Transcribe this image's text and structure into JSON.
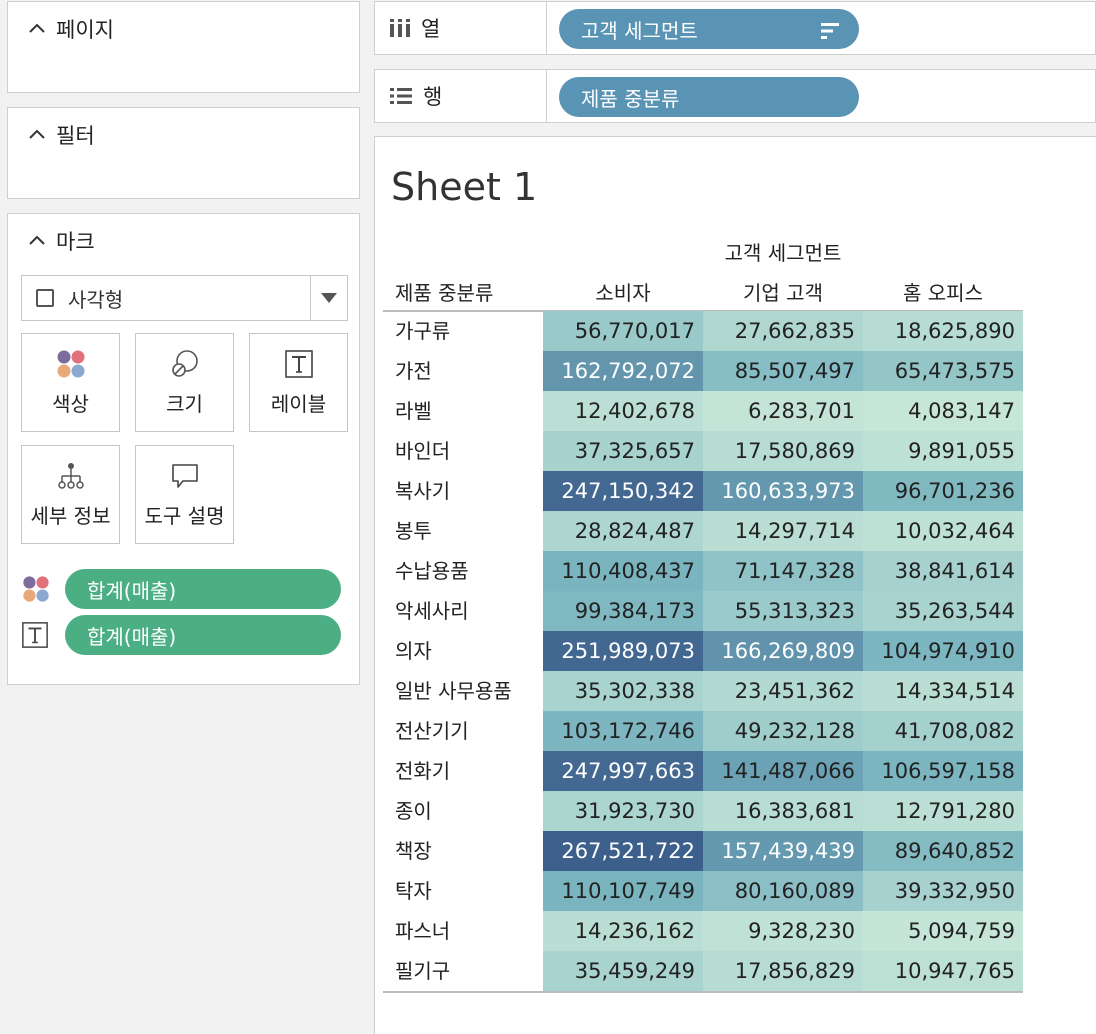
{
  "panels": {
    "pages_title": "페이지",
    "filters_title": "필터",
    "marks_title": "마크",
    "mark_type": "사각형",
    "mark_buttons": [
      "색상",
      "크기",
      "레이블",
      "세부 정보",
      "도구 설명"
    ],
    "mark_pills": [
      "합계(매출)",
      "합계(매출)"
    ]
  },
  "shelves": {
    "columns_label": "열",
    "columns_pill": "고객 세그먼트",
    "rows_label": "행",
    "rows_pill": "제품 중분류"
  },
  "view": {
    "sheet_title": "Sheet 1",
    "column_group": "고객 세그먼트",
    "row_header": "제품 중분류",
    "columns": [
      "소비자",
      "기업 고객",
      "홈 오피스"
    ],
    "rows": [
      {
        "label": "가구류",
        "values": [
          "56,770,017",
          "27,662,835",
          "18,625,890"
        ],
        "raw": [
          56770017,
          27662835,
          18625890
        ]
      },
      {
        "label": "가전",
        "values": [
          "162,792,072",
          "85,507,497",
          "65,473,575"
        ],
        "raw": [
          162792072,
          85507497,
          65473575
        ]
      },
      {
        "label": "라벨",
        "values": [
          "12,402,678",
          "6,283,701",
          "4,083,147"
        ],
        "raw": [
          12402678,
          6283701,
          4083147
        ]
      },
      {
        "label": "바인더",
        "values": [
          "37,325,657",
          "17,580,869",
          "9,891,055"
        ],
        "raw": [
          37325657,
          17580869,
          9891055
        ]
      },
      {
        "label": "복사기",
        "values": [
          "247,150,342",
          "160,633,973",
          "96,701,236"
        ],
        "raw": [
          247150342,
          160633973,
          96701236
        ]
      },
      {
        "label": "봉투",
        "values": [
          "28,824,487",
          "14,297,714",
          "10,032,464"
        ],
        "raw": [
          28824487,
          14297714,
          10032464
        ]
      },
      {
        "label": "수납용품",
        "values": [
          "110,408,437",
          "71,147,328",
          "38,841,614"
        ],
        "raw": [
          110408437,
          71147328,
          38841614
        ]
      },
      {
        "label": "악세사리",
        "values": [
          "99,384,173",
          "55,313,323",
          "35,263,544"
        ],
        "raw": [
          99384173,
          55313323,
          35263544
        ]
      },
      {
        "label": "의자",
        "values": [
          "251,989,073",
          "166,269,809",
          "104,974,910"
        ],
        "raw": [
          251989073,
          166269809,
          104974910
        ]
      },
      {
        "label": "일반 사무용품",
        "values": [
          "35,302,338",
          "23,451,362",
          "14,334,514"
        ],
        "raw": [
          35302338,
          23451362,
          14334514
        ]
      },
      {
        "label": "전산기기",
        "values": [
          "103,172,746",
          "49,232,128",
          "41,708,082"
        ],
        "raw": [
          103172746,
          49232128,
          41708082
        ]
      },
      {
        "label": "전화기",
        "values": [
          "247,997,663",
          "141,487,066",
          "106,597,158"
        ],
        "raw": [
          247997663,
          141487066,
          106597158
        ]
      },
      {
        "label": "종이",
        "values": [
          "31,923,730",
          "16,383,681",
          "12,791,280"
        ],
        "raw": [
          31923730,
          16383681,
          12791280
        ]
      },
      {
        "label": "책장",
        "values": [
          "267,521,722",
          "157,439,439",
          "89,640,852"
        ],
        "raw": [
          267521722,
          157439439,
          89640852
        ]
      },
      {
        "label": "탁자",
        "values": [
          "110,107,749",
          "80,160,089",
          "39,332,950"
        ],
        "raw": [
          110107749,
          80160089,
          39332950
        ]
      },
      {
        "label": "파스너",
        "values": [
          "14,236,162",
          "9,328,230",
          "5,094,759"
        ],
        "raw": [
          14236162,
          9328230,
          5094759
        ]
      },
      {
        "label": "필기구",
        "values": [
          "35,459,249",
          "17,856,829",
          "10,947,765"
        ],
        "raw": [
          35459249,
          17856829,
          10947765
        ]
      }
    ]
  },
  "colors": {
    "pill_blue": "#5a94b4",
    "pill_green": "#4caf83",
    "heat_low": "#c6e6d8",
    "heat_high": "#3c5f8c"
  },
  "icons": {
    "columns": "column-bars-icon",
    "rows": "row-lines-icon",
    "sort": "sort-descending-icon",
    "color": "color-dots-icon",
    "size": "size-circles-icon",
    "label": "text-t-icon",
    "detail": "hierarchy-icon",
    "tooltip": "speech-bubble-icon"
  }
}
